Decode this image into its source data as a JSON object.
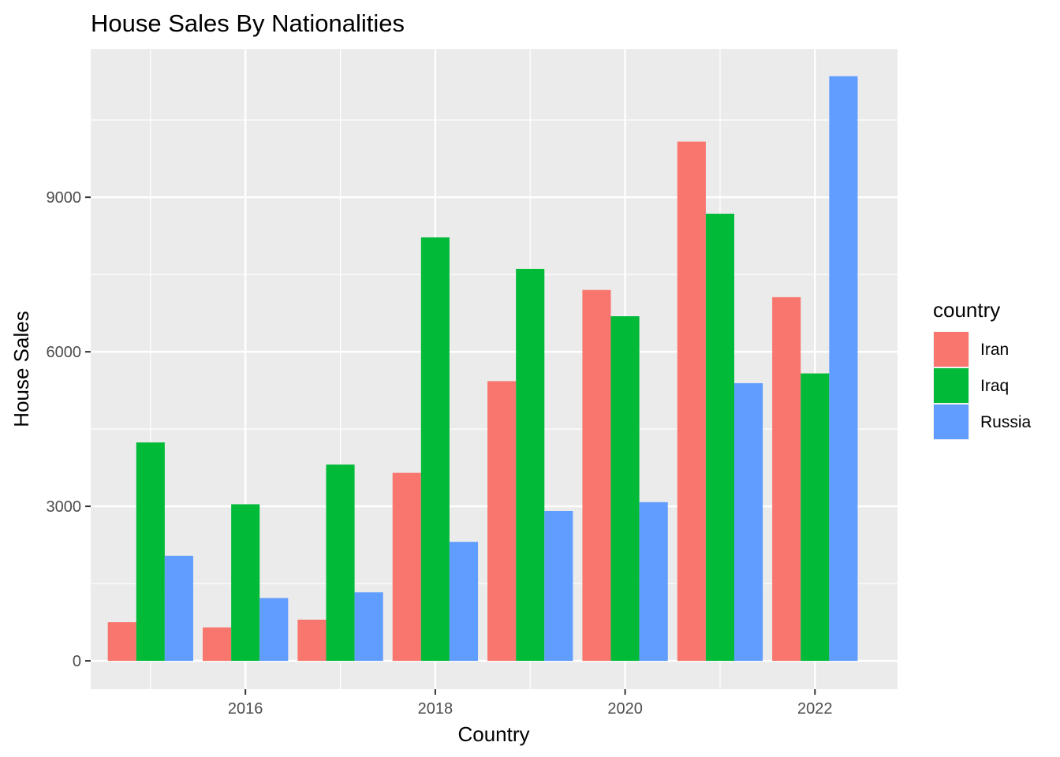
{
  "chart_data": {
    "type": "bar",
    "title": "House Sales By Nationalities",
    "xlabel": "Country",
    "ylabel": "House Sales",
    "x": [
      2015,
      2016,
      2017,
      2018,
      2019,
      2020,
      2021,
      2022
    ],
    "x_tick_labels": [
      "2016",
      "2018",
      "2020",
      "2022"
    ],
    "x_tick_values": [
      2016,
      2018,
      2020,
      2022
    ],
    "xlim": [
      2014.37,
      2022.87
    ],
    "y_tick_labels": [
      "0",
      "3000",
      "6000",
      "9000"
    ],
    "y_tick_values": [
      0,
      3000,
      6000,
      9000
    ],
    "ylim": [
      -550,
      11880
    ],
    "grid": true,
    "legend": {
      "title": "country",
      "position": "right"
    },
    "series": [
      {
        "name": "Iran",
        "color": "#F8766D",
        "values": [
          750,
          650,
          800,
          3650,
          5430,
          7200,
          10080,
          7060
        ]
      },
      {
        "name": "Iraq",
        "color": "#00BA38",
        "values": [
          4240,
          3040,
          3810,
          8220,
          7610,
          6690,
          8680,
          5580
        ]
      },
      {
        "name": "Russia",
        "color": "#619CFF",
        "values": [
          2040,
          1220,
          1330,
          2310,
          2910,
          3080,
          5390,
          11350
        ]
      }
    ]
  }
}
